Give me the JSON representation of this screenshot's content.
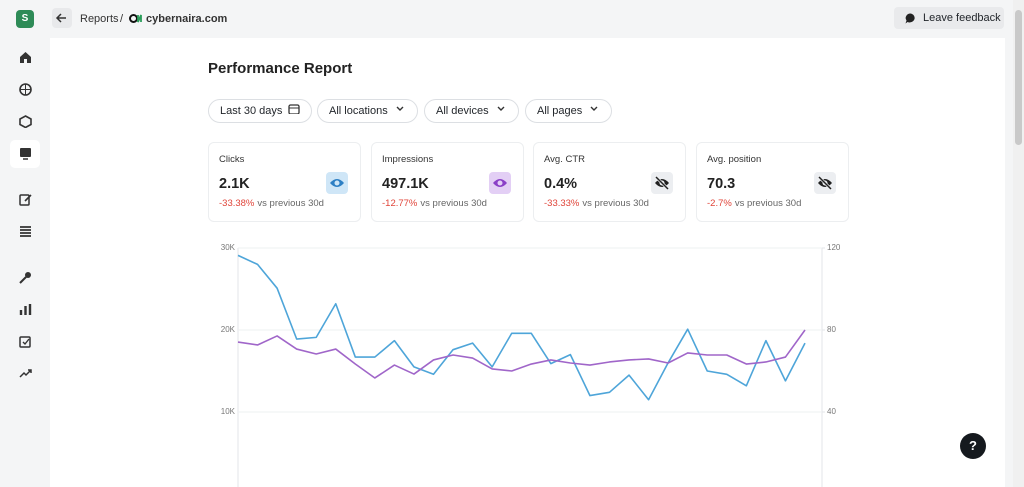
{
  "sidebar": {
    "logo": "S"
  },
  "topbar": {
    "breadcrumb": "Reports",
    "separator": "/",
    "site": "cybernaira.com",
    "feedback": "Leave feedback"
  },
  "header": {
    "title": "Performance Report"
  },
  "filters": [
    "Last 30 days",
    "All locations",
    "All devices",
    "All pages"
  ],
  "cards": [
    {
      "label": "Clicks",
      "value": "2.1K",
      "change": "-33.38%",
      "note": "vs previous 30d"
    },
    {
      "label": "Impressions",
      "value": "497.1K",
      "change": "-12.77%",
      "note": "vs previous 30d"
    },
    {
      "label": "Avg. CTR",
      "value": "0.4%",
      "change": "-33.33%",
      "note": "vs previous 30d"
    },
    {
      "label": "Avg. position",
      "value": "70.3",
      "change": "-2.7%",
      "note": "vs previous 30d"
    }
  ],
  "help": "?",
  "chart_data": {
    "type": "line",
    "categories": [
      null,
      null,
      null,
      null,
      null,
      null,
      null,
      null,
      null,
      null,
      null,
      null,
      null,
      null,
      null,
      null,
      null,
      null,
      null,
      null,
      null,
      null,
      null,
      null,
      null,
      null,
      null,
      null,
      null,
      null
    ],
    "series": [
      {
        "color": "#4ea5d9",
        "values": [
          29100,
          28000,
          25100,
          18900,
          19100,
          23200,
          16700,
          16700,
          18700,
          15500,
          14600,
          17600,
          18400,
          15500,
          19600,
          19600,
          15900,
          17000,
          12000,
          12400,
          14500,
          11500,
          16000,
          20100,
          15000,
          14600,
          13200,
          18700,
          13800,
          18400
        ]
      },
      {
        "color": "#a066c9",
        "axis": "y2",
        "values": [
          74.1,
          72.7,
          77.1,
          70.7,
          68.3,
          70.7,
          63.4,
          56.6,
          62.9,
          58.5,
          65.4,
          67.8,
          66.3,
          61.0,
          60.0,
          63.4,
          65.4,
          63.9,
          62.9,
          64.4,
          65.4,
          65.9,
          63.9,
          68.8,
          67.8,
          67.8,
          63.4,
          64.4,
          66.8,
          80.0
        ]
      }
    ],
    "ylim": [
      0,
      30000
    ],
    "yticks": [
      {
        "value": 10000,
        "label": "10K"
      },
      {
        "value": 20000,
        "label": "20K"
      },
      {
        "value": 30000,
        "label": "30K"
      }
    ],
    "y2lim": [
      0,
      120
    ],
    "y2ticks": [
      40,
      80,
      120
    ],
    "grid": true
  }
}
